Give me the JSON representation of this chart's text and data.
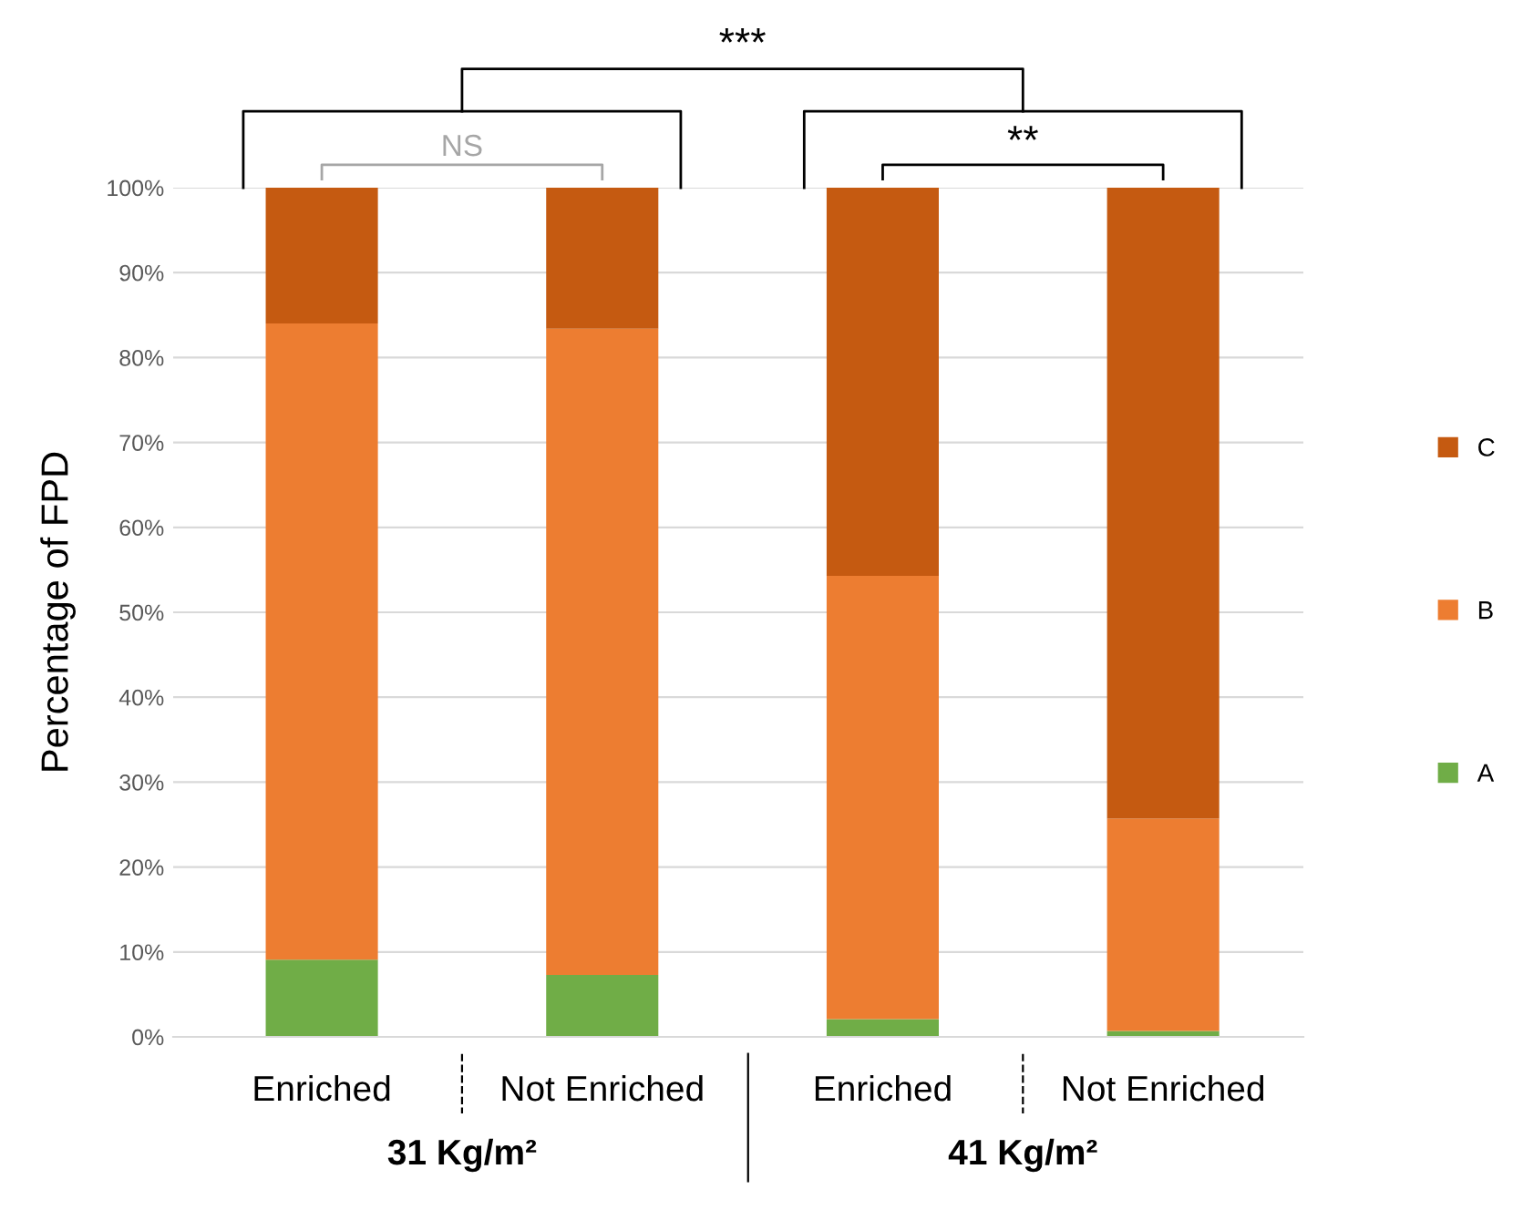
{
  "chart_data": {
    "type": "bar",
    "stacked": true,
    "categories": [
      "Enriched",
      "Not Enriched",
      "Enriched",
      "Not Enriched"
    ],
    "series": [
      {
        "name": "A",
        "color": "#70ad47",
        "values": [
          9.1,
          7.3,
          2.1,
          0.7
        ]
      },
      {
        "name": "B",
        "color": "#ed7d31",
        "values": [
          74.9,
          76.1,
          52.2,
          25.0
        ]
      },
      {
        "name": "C",
        "color": "#c55a11",
        "values": [
          16.0,
          16.6,
          45.7,
          74.3
        ]
      }
    ],
    "ylabel": "Percentage of FPD",
    "ylim": [
      0,
      100
    ],
    "yticks": [
      {
        "value": 0,
        "label": "0%"
      },
      {
        "value": 10,
        "label": "10%"
      },
      {
        "value": 20,
        "label": "20%"
      },
      {
        "value": 30,
        "label": "30%"
      },
      {
        "value": 40,
        "label": "40%"
      },
      {
        "value": 50,
        "label": "50%"
      },
      {
        "value": 60,
        "label": "60%"
      },
      {
        "value": 70,
        "label": "70%"
      },
      {
        "value": 80,
        "label": "80%"
      },
      {
        "value": 90,
        "label": "90%"
      },
      {
        "value": 100,
        "label": "100%"
      }
    ],
    "grid": "y",
    "legend": "right",
    "annotations": [
      "NS",
      "**",
      "***",
      "31 Kg/m²",
      "41 Kg/m²"
    ]
  }
}
